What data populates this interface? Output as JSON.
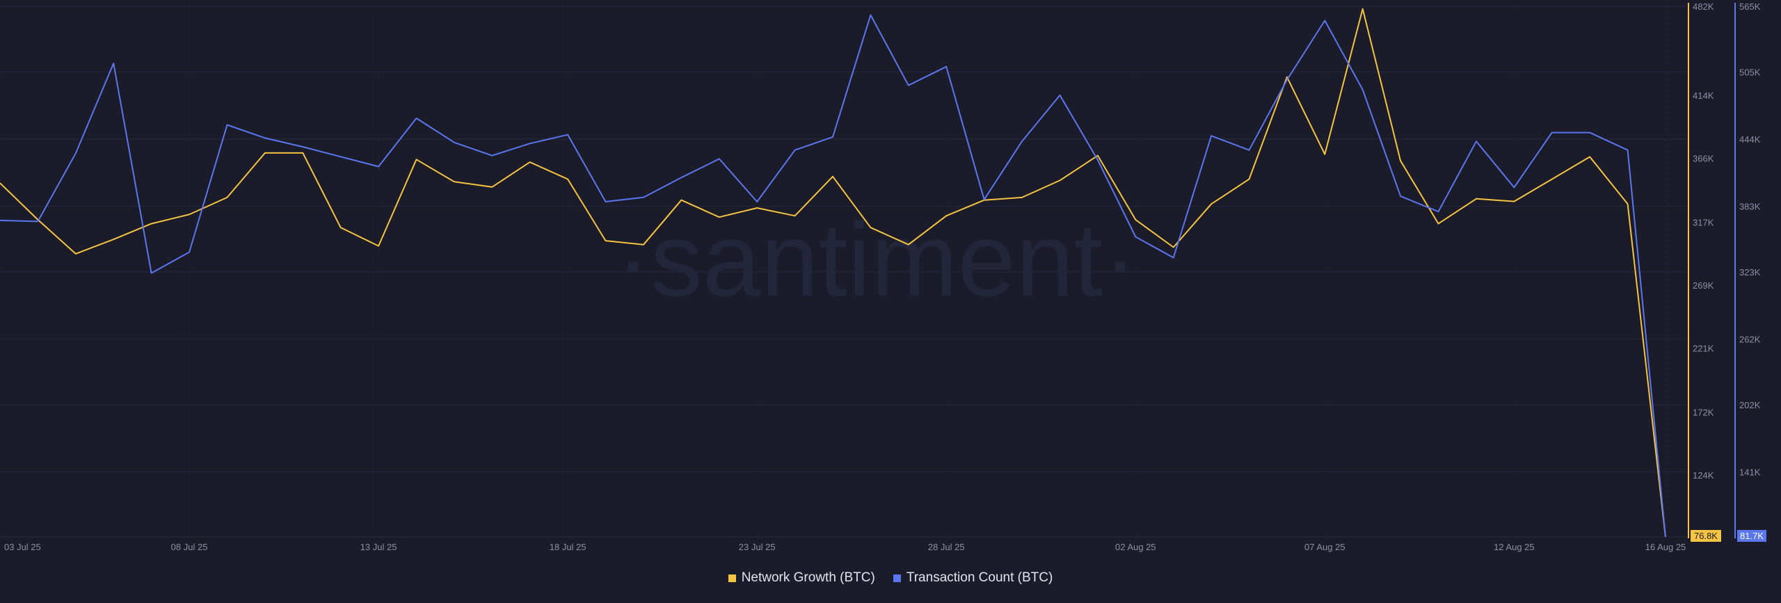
{
  "watermark": "·santiment·",
  "chart_data": {
    "type": "line",
    "x": [
      "03 Jul 25",
      "04 Jul 25",
      "05 Jul 25",
      "06 Jul 25",
      "07 Jul 25",
      "08 Jul 25",
      "09 Jul 25",
      "10 Jul 25",
      "11 Jul 25",
      "12 Jul 25",
      "13 Jul 25",
      "14 Jul 25",
      "15 Jul 25",
      "16 Jul 25",
      "17 Jul 25",
      "18 Jul 25",
      "19 Jul 25",
      "20 Jul 25",
      "21 Jul 25",
      "22 Jul 25",
      "23 Jul 25",
      "24 Jul 25",
      "25 Jul 25",
      "26 Jul 25",
      "27 Jul 25",
      "28 Jul 25",
      "29 Jul 25",
      "30 Jul 25",
      "31 Jul 25",
      "01 Aug 25",
      "02 Aug 25",
      "03 Aug 25",
      "04 Aug 25",
      "05 Aug 25",
      "06 Aug 25",
      "07 Aug 25",
      "08 Aug 25",
      "09 Aug 25",
      "10 Aug 25",
      "11 Aug 25",
      "12 Aug 25",
      "13 Aug 25",
      "14 Aug 25",
      "15 Aug 25",
      "16 Aug 25"
    ],
    "x_tick_labels": [
      "03 Jul 25",
      "08 Jul 25",
      "13 Jul 25",
      "18 Jul 25",
      "23 Jul 25",
      "28 Jul 25",
      "02 Aug 25",
      "07 Aug 25",
      "12 Aug 25",
      "16 Aug 25"
    ],
    "series": [
      {
        "name": "Network Growth (BTC)",
        "color": "#f5c542",
        "axis": "left",
        "values": [
          347000,
          319000,
          293000,
          304000,
          316000,
          323000,
          336000,
          370000,
          370000,
          313000,
          299000,
          365000,
          348000,
          344000,
          363000,
          350000,
          303000,
          300000,
          334000,
          321000,
          328000,
          322000,
          352000,
          313000,
          300000,
          322000,
          334000,
          336000,
          349000,
          368000,
          319000,
          298000,
          331000,
          350000,
          428000,
          369000,
          480000,
          364000,
          316000,
          335000,
          333000,
          350000,
          367000,
          331000,
          76800
        ]
      },
      {
        "name": "Transaction Count (BTC)",
        "color": "#5b77f0",
        "axis": "right",
        "values": [
          370000,
          369000,
          431000,
          513000,
          322000,
          341000,
          457000,
          445000,
          437000,
          428000,
          419000,
          463000,
          441000,
          429000,
          440000,
          448000,
          387000,
          391000,
          409000,
          426000,
          387000,
          434000,
          446000,
          557000,
          493000,
          510000,
          389000,
          442000,
          484000,
          425000,
          355000,
          336000,
          447000,
          434000,
          498000,
          552000,
          489000,
          392000,
          378000,
          442000,
          400000,
          450000,
          450000,
          434000,
          81700
        ]
      }
    ],
    "left_axis": {
      "min": 76800,
      "max": 482000,
      "ticks": [
        "124K",
        "172K",
        "221K",
        "269K",
        "317K",
        "366K",
        "414K",
        "482K"
      ],
      "latest_value": "76.8K"
    },
    "right_axis": {
      "min": 81700,
      "max": 565000,
      "ticks": [
        "141K",
        "202K",
        "262K",
        "323K",
        "383K",
        "444K",
        "505K",
        "565K"
      ],
      "latest_value": "81.7K"
    },
    "grid": true,
    "legend_position": "bottom-center"
  }
}
